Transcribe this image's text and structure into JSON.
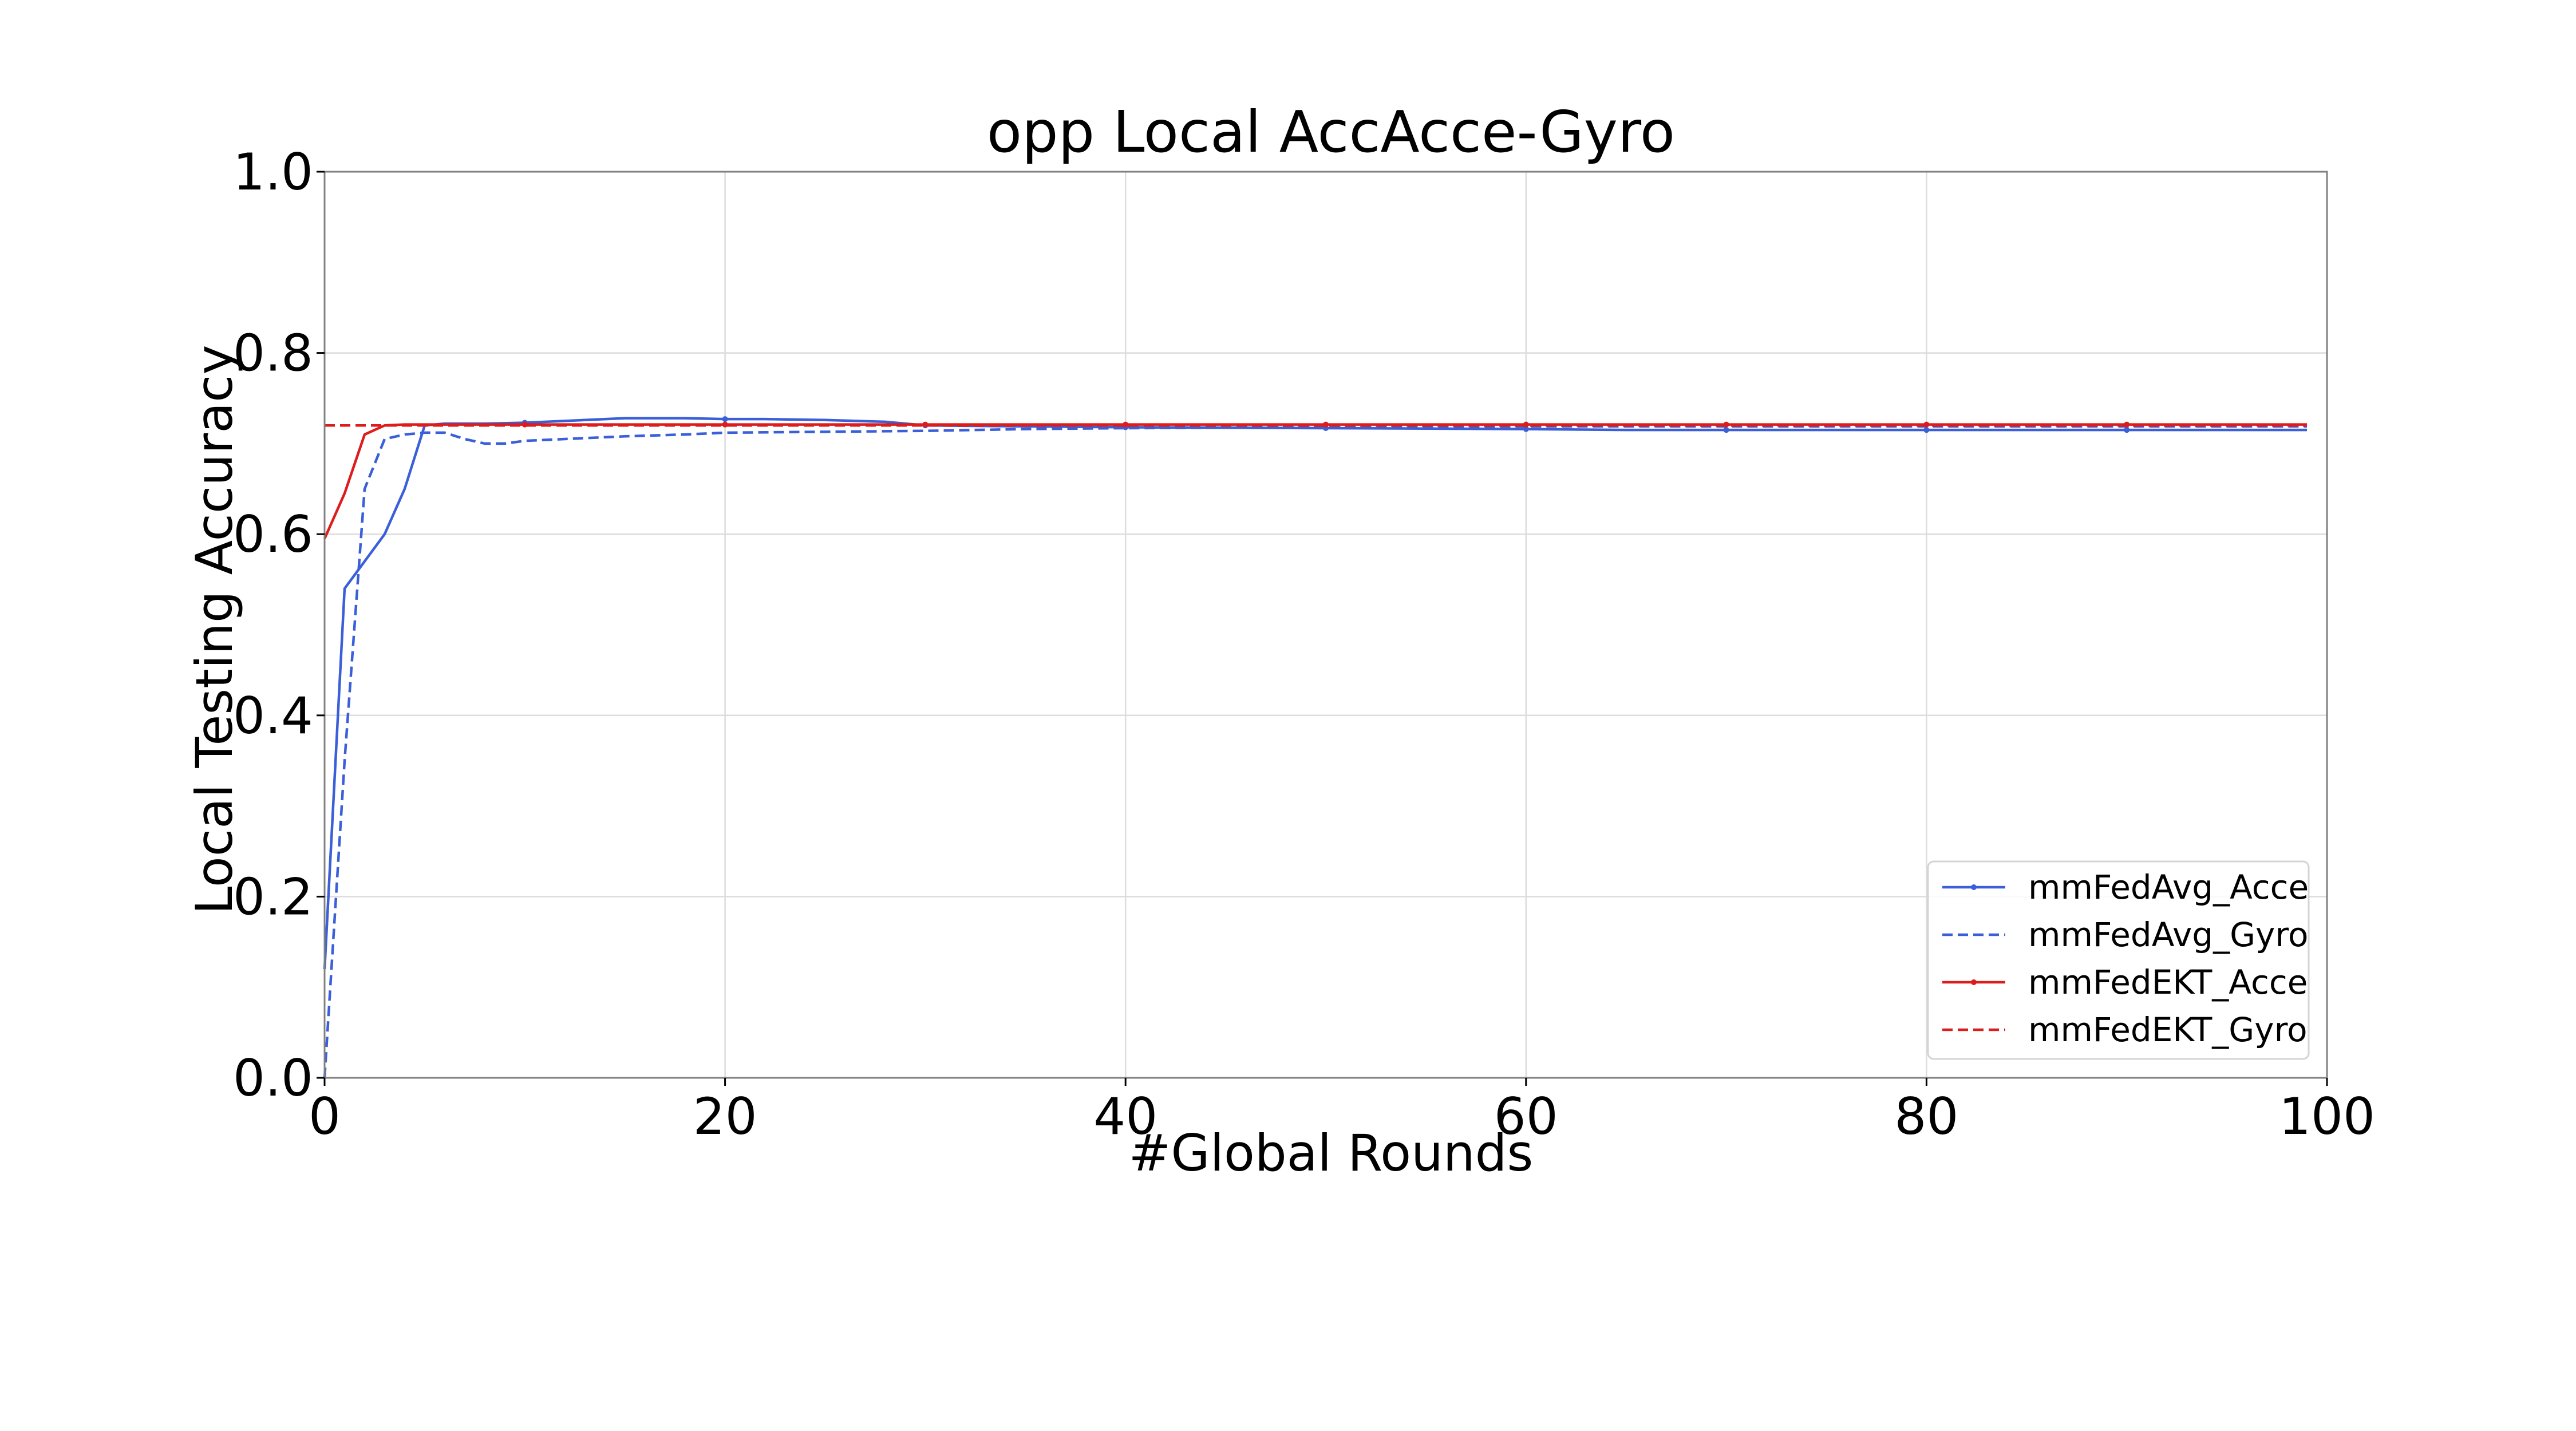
{
  "chart_data": {
    "type": "line",
    "title": "opp  Local AccAcce-Gyro",
    "xlabel": "#Global Rounds",
    "ylabel": "Local Testing Accuracy",
    "xlim": [
      0,
      100
    ],
    "ylim": [
      0.0,
      1.0
    ],
    "x_ticks": [
      "0",
      "20",
      "40",
      "60",
      "80",
      "100"
    ],
    "y_ticks": [
      "0.0",
      "0.2",
      "0.4",
      "0.6",
      "0.8",
      "1.0"
    ],
    "grid": true,
    "legend_position": "lower-right",
    "series": [
      {
        "name": "mmFedAvg_Acce",
        "color": "#3a5fd9",
        "dash": "solid",
        "marker_every": 10,
        "x": [
          0,
          1,
          2,
          3,
          4,
          5,
          6,
          8,
          10,
          12,
          15,
          18,
          20,
          22,
          25,
          28,
          30,
          35,
          40,
          50,
          60,
          65,
          70,
          75,
          80,
          85,
          90,
          95,
          99
        ],
        "values": [
          0.12,
          0.54,
          0.57,
          0.6,
          0.65,
          0.72,
          0.722,
          0.722,
          0.723,
          0.725,
          0.728,
          0.728,
          0.727,
          0.727,
          0.726,
          0.724,
          0.72,
          0.719,
          0.718,
          0.717,
          0.716,
          0.715,
          0.715,
          0.715,
          0.715,
          0.715,
          0.715,
          0.715,
          0.715
        ]
      },
      {
        "name": "mmFedAvg_Gyro",
        "color": "#3a5fd9",
        "dash": "dashed",
        "marker_every": 0,
        "x": [
          0,
          1,
          2,
          3,
          4,
          5,
          6,
          7,
          8,
          9,
          10,
          12,
          15,
          18,
          20,
          25,
          30,
          35,
          40,
          50,
          60,
          70,
          80,
          90,
          99
        ],
        "values": [
          0.0,
          0.35,
          0.65,
          0.705,
          0.71,
          0.712,
          0.712,
          0.705,
          0.7,
          0.7,
          0.703,
          0.705,
          0.708,
          0.71,
          0.712,
          0.713,
          0.714,
          0.716,
          0.717,
          0.718,
          0.719,
          0.719,
          0.719,
          0.719,
          0.719
        ]
      },
      {
        "name": "mmFedEKT_Acce",
        "color": "#dd1c1c",
        "dash": "solid",
        "marker_every": 10,
        "x": [
          0,
          1,
          2,
          3,
          4,
          5,
          10,
          20,
          30,
          40,
          50,
          60,
          70,
          80,
          90,
          99
        ],
        "values": [
          0.595,
          0.645,
          0.71,
          0.72,
          0.721,
          0.721,
          0.721,
          0.721,
          0.721,
          0.721,
          0.721,
          0.721,
          0.721,
          0.721,
          0.721,
          0.721
        ]
      },
      {
        "name": "mmFedEKT_Gyro",
        "color": "#dd1c1c",
        "dash": "dashed",
        "marker_every": 0,
        "x": [
          0,
          99
        ],
        "values": [
          0.72,
          0.72
        ]
      }
    ]
  }
}
